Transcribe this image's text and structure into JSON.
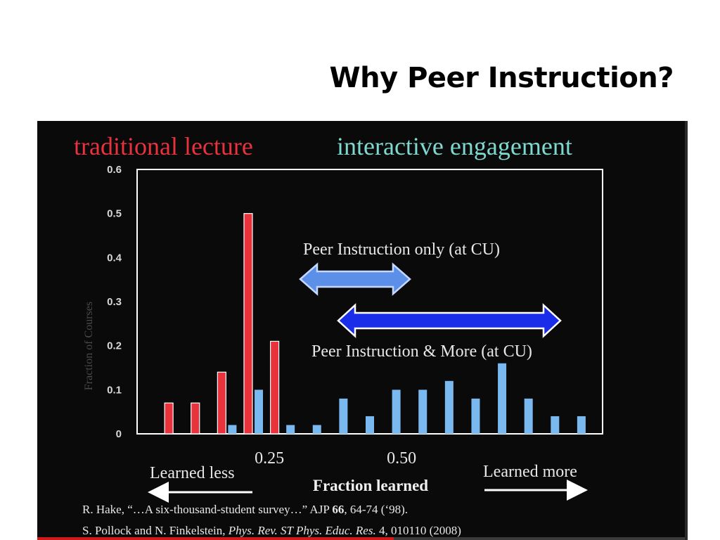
{
  "slide": {
    "title": "Why Peer Instruction?"
  },
  "video": {
    "progress": 0.55
  },
  "chart_data": {
    "type": "bar",
    "ylabel": "Fraction of Courses",
    "xlabel": "Fraction learned",
    "ylim": [
      0,
      0.6
    ],
    "xlim": [
      0,
      0.88
    ],
    "y_ticks": [
      "0",
      "0.1",
      "0.2",
      "0.3",
      "0.4",
      "0.5",
      "0.6"
    ],
    "x_ticks": [
      {
        "value": 0.25,
        "label": "0.25"
      },
      {
        "value": 0.5,
        "label": "0.50"
      }
    ],
    "grid": false,
    "legend_position": "top",
    "series": [
      {
        "name": "traditional lecture",
        "color": "#e8323c",
        "x": [
          0.06,
          0.11,
          0.16,
          0.21,
          0.26
        ],
        "values": [
          0.07,
          0.07,
          0.14,
          0.5,
          0.21
        ]
      },
      {
        "name": "interactive engagement",
        "color": "#7ab8f0",
        "x": [
          0.18,
          0.23,
          0.29,
          0.34,
          0.39,
          0.44,
          0.49,
          0.54,
          0.59,
          0.64,
          0.69,
          0.74,
          0.79,
          0.84
        ],
        "values": [
          0.02,
          0.1,
          0.02,
          0.02,
          0.08,
          0.04,
          0.1,
          0.1,
          0.12,
          0.08,
          0.16,
          0.08,
          0.04,
          0.04
        ]
      }
    ],
    "annotations": {
      "pi_only": "Peer Instruction only (at CU)",
      "pi_more": "Peer Instruction & More (at CU)",
      "learned_less": "Learned less",
      "learned_more": "Learned more"
    },
    "citations": {
      "line1_a": "R. Hake, “…A six-thousand-student survey…” AJP ",
      "line1_b": "66",
      "line1_c": ", 64-74 (‘98).",
      "line2_a": "S. Pollock and N. Finkelstein, ",
      "line2_b": "Phys. Rev. ST Phys. Educ. Res.",
      "line2_c": " 4, 010110 (2008)"
    }
  }
}
